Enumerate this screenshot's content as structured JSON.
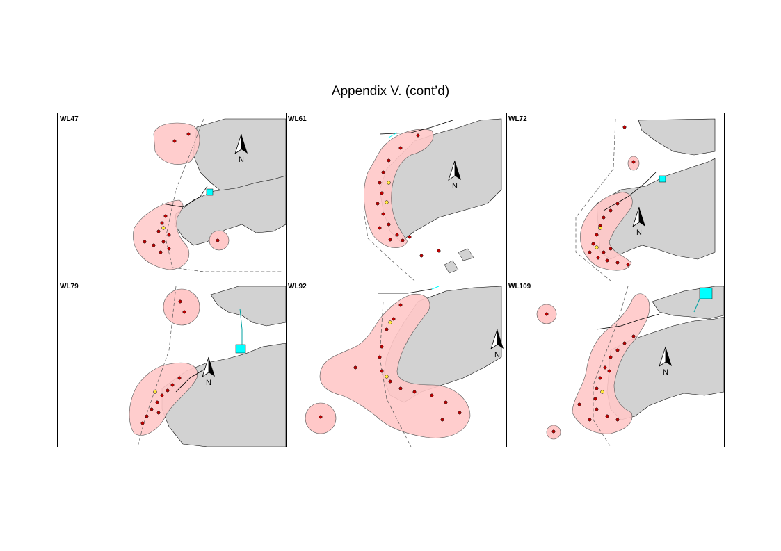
{
  "page": {
    "title": "Appendix V.  (cont’d)"
  },
  "colors": {
    "land": "#d2d2d2",
    "range": "#ffc8c8",
    "point": "#c00000",
    "highlight": "#ffe63c",
    "river": "#00ffff"
  },
  "north_arrow": {
    "label": "N",
    "icon": "north-arrow-icon"
  },
  "panels": [
    {
      "label": "WL47"
    },
    {
      "label": "WL61"
    },
    {
      "label": "WL72"
    },
    {
      "label": "WL79"
    },
    {
      "label": "WL92"
    },
    {
      "label": "WL109"
    }
  ]
}
